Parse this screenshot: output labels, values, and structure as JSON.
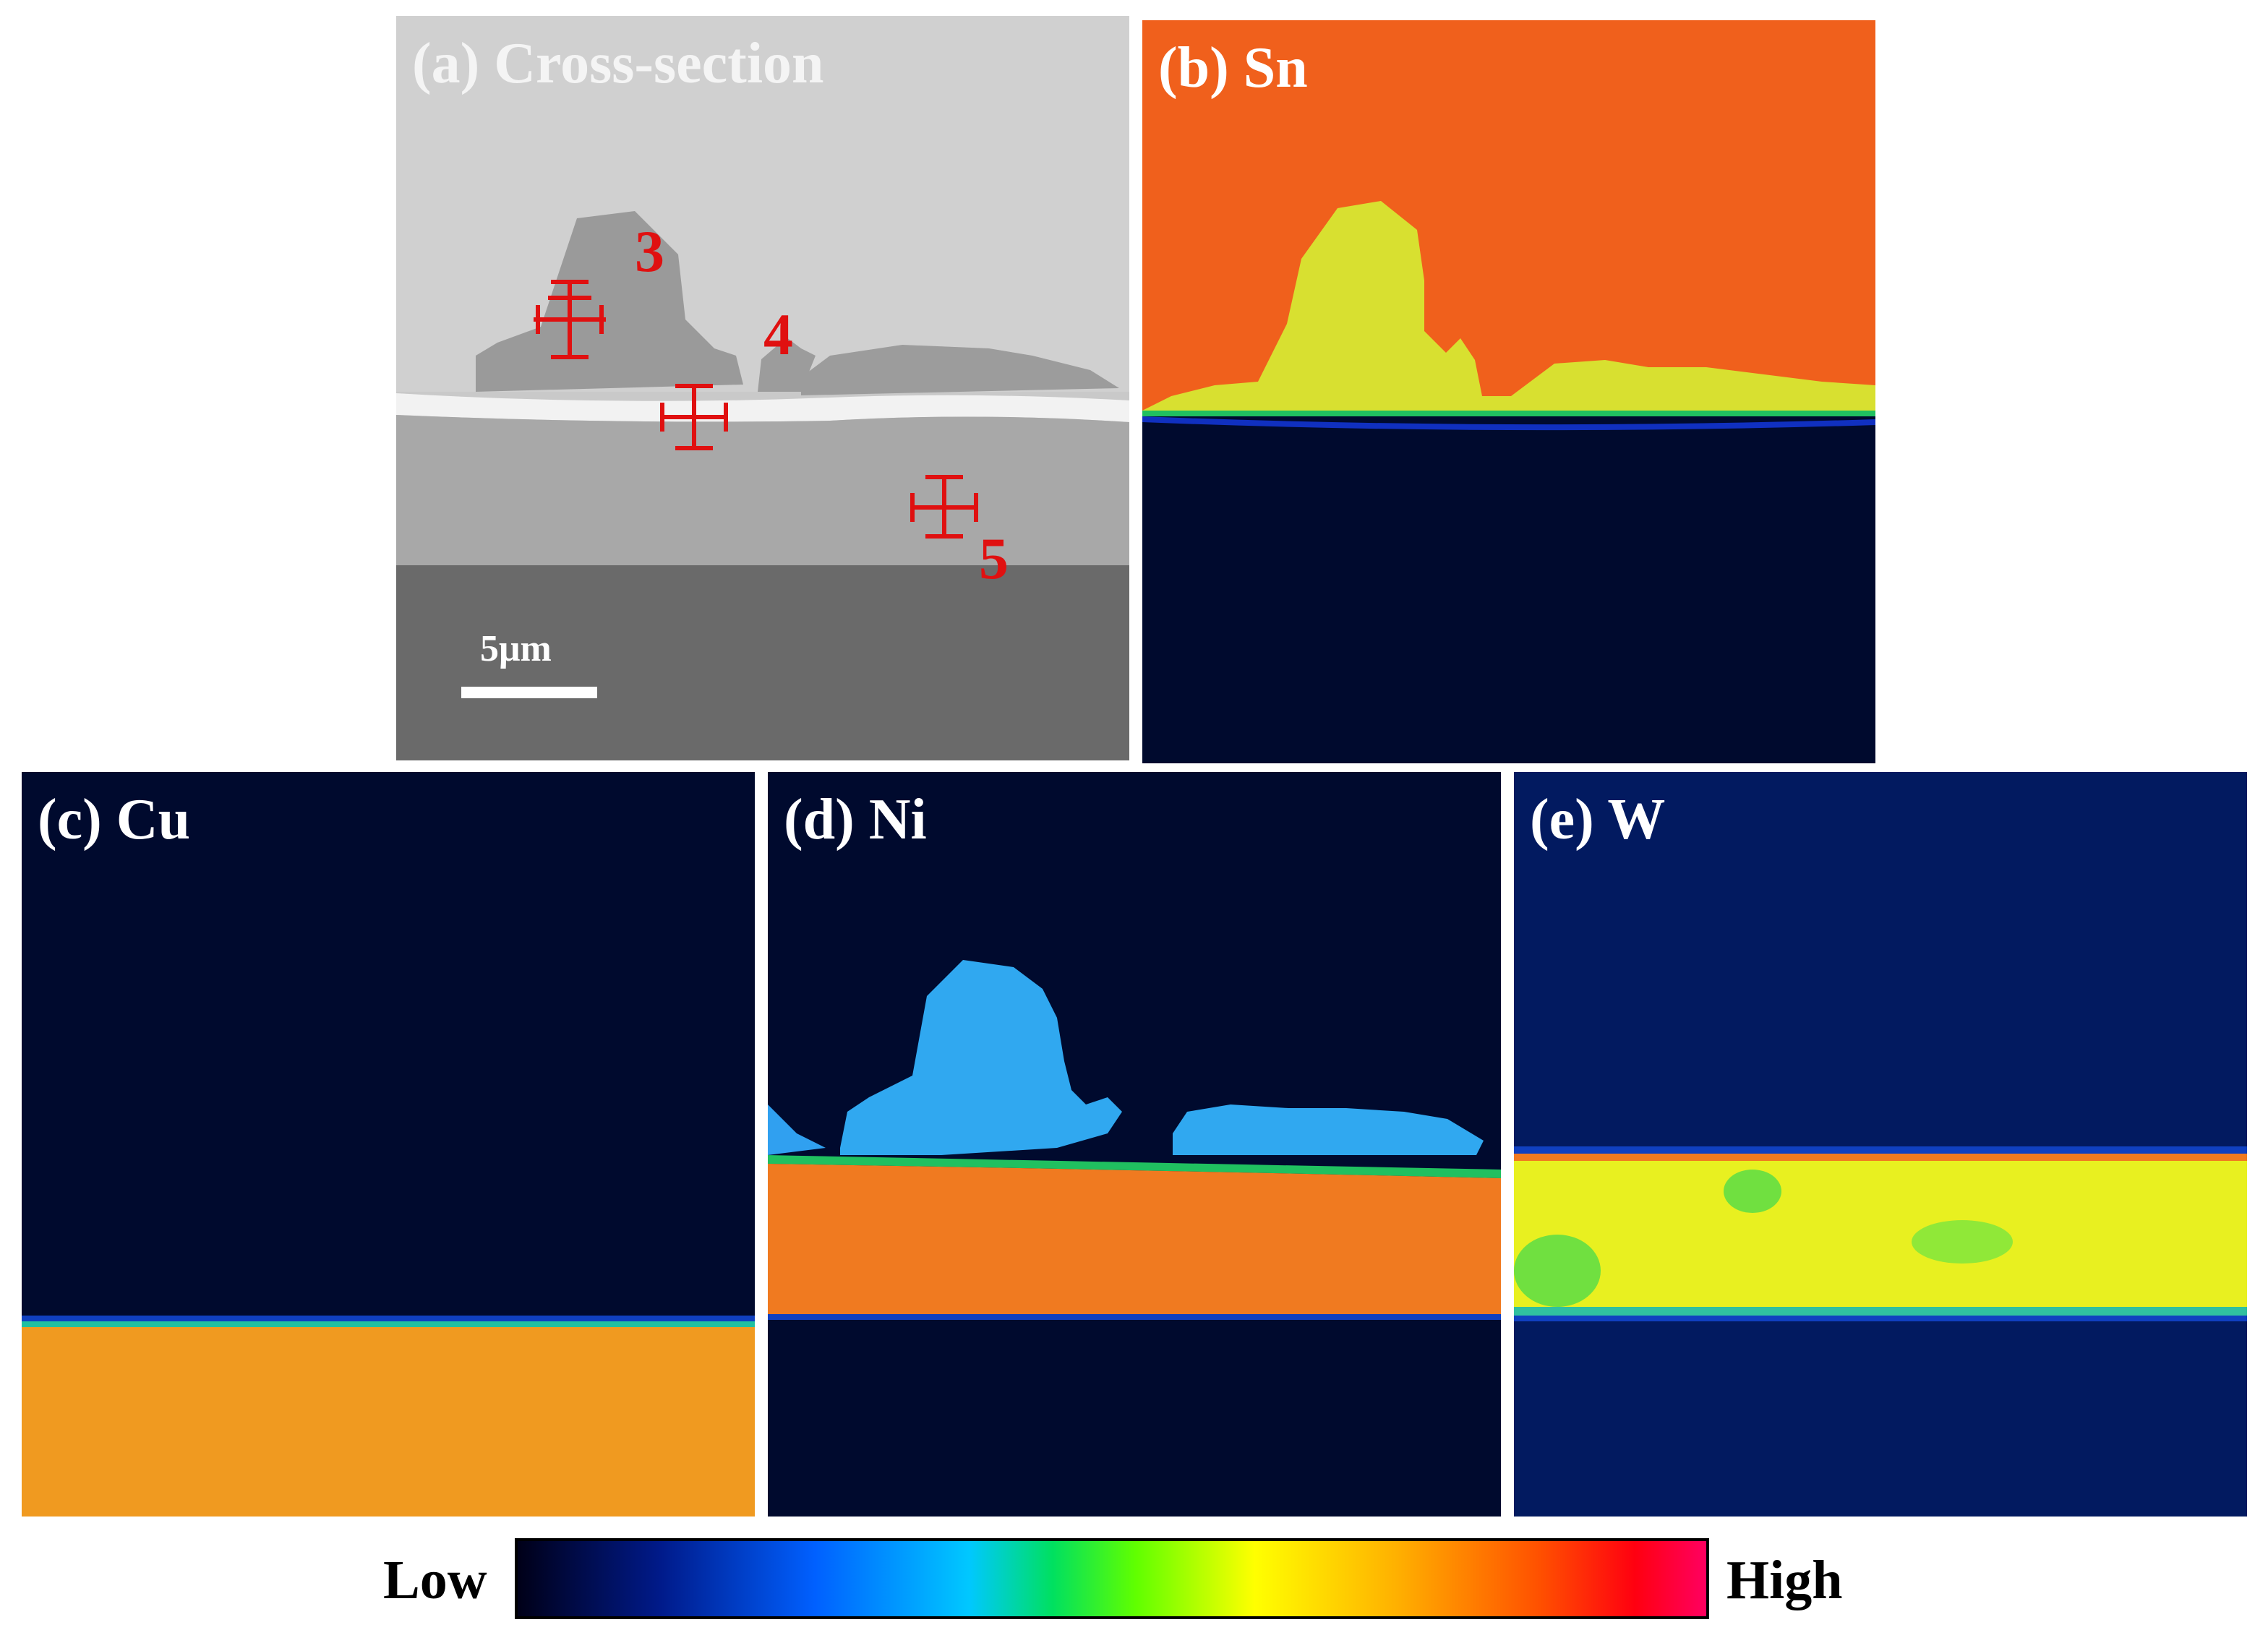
{
  "panels": {
    "a": {
      "label": "(a) Cross-section",
      "markers": [
        "3",
        "4",
        "5"
      ],
      "scale_bar": "5μm"
    },
    "b": {
      "label": "(b) Sn"
    },
    "c": {
      "label": "(c) Cu"
    },
    "d": {
      "label": "(d) Ni"
    },
    "e": {
      "label": "(e) W"
    }
  },
  "colorbar": {
    "low": "Low",
    "high": "High"
  },
  "colors": {
    "background_dark": "#000a2e",
    "marker_red": "#e01010",
    "low_end": "#000018",
    "high_end": "#ff0060"
  }
}
